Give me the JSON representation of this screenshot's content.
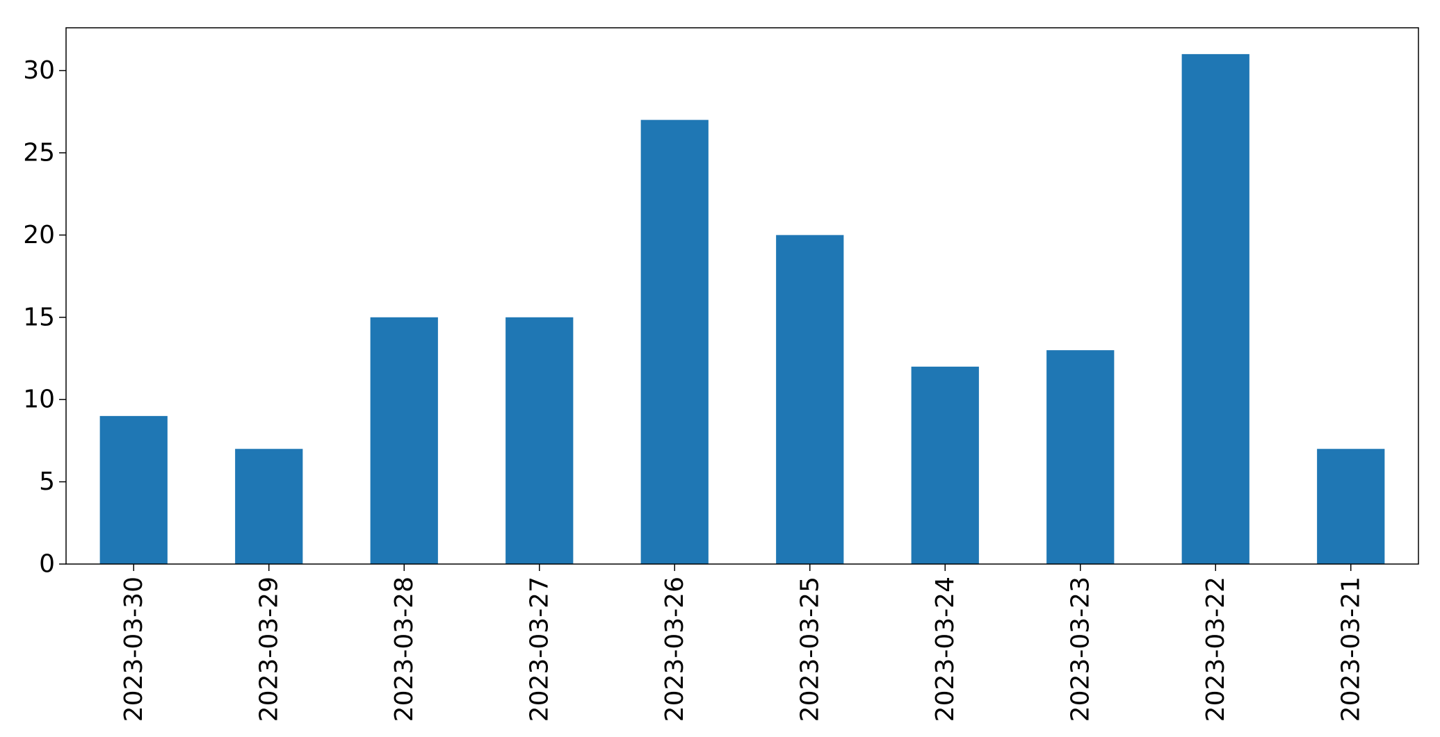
{
  "chart_data": {
    "type": "bar",
    "categories": [
      "2023-03-30",
      "2023-03-29",
      "2023-03-28",
      "2023-03-27",
      "2023-03-26",
      "2023-03-25",
      "2023-03-24",
      "2023-03-23",
      "2023-03-22",
      "2023-03-21"
    ],
    "values": [
      9,
      7,
      15,
      15,
      27,
      20,
      12,
      13,
      31,
      7
    ],
    "title": "",
    "xlabel": "",
    "ylabel": "",
    "ylim": [
      0,
      32.6
    ],
    "yticks": [
      0,
      5,
      10,
      15,
      20,
      25,
      30
    ],
    "ytick_labels": [
      "0",
      "5",
      "10",
      "15",
      "20",
      "25",
      "30"
    ],
    "grid": false,
    "legend": "none",
    "bar_color": "#1f77b4"
  }
}
